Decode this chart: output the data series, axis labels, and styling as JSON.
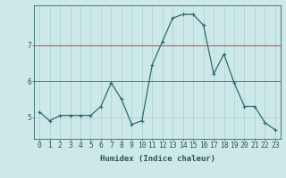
{
  "x": [
    0,
    1,
    2,
    3,
    4,
    5,
    6,
    7,
    8,
    9,
    10,
    11,
    12,
    13,
    14,
    15,
    16,
    17,
    18,
    19,
    20,
    21,
    22,
    23
  ],
  "y": [
    5.15,
    4.9,
    5.05,
    5.05,
    5.05,
    5.05,
    5.3,
    5.95,
    5.5,
    4.8,
    4.9,
    6.45,
    7.1,
    7.75,
    7.85,
    7.85,
    7.55,
    6.2,
    6.75,
    5.95,
    5.3,
    5.3,
    4.85,
    4.65
  ],
  "xlabel": "Humidex (Indice chaleur)",
  "xlim": [
    -0.5,
    23.5
  ],
  "ylim": [
    4.4,
    8.1
  ],
  "yticks": [
    5,
    6,
    7
  ],
  "xticks": [
    0,
    1,
    2,
    3,
    4,
    5,
    6,
    7,
    8,
    9,
    10,
    11,
    12,
    13,
    14,
    15,
    16,
    17,
    18,
    19,
    20,
    21,
    22,
    23
  ],
  "line_color": "#2d6b6b",
  "marker": "+",
  "marker_size": 3.5,
  "marker_edge_width": 0.8,
  "bg_color": "#cce8e8",
  "grid_color": "#aad0d0",
  "red_line_color": "#cc4444",
  "red_line_yticks": [
    6,
    7
  ],
  "axis_color": "#336666",
  "label_color": "#2d5555",
  "tick_color": "#2d5555",
  "font_size_xlabel": 6.5,
  "font_size_tick": 5.8,
  "line_width": 0.9
}
